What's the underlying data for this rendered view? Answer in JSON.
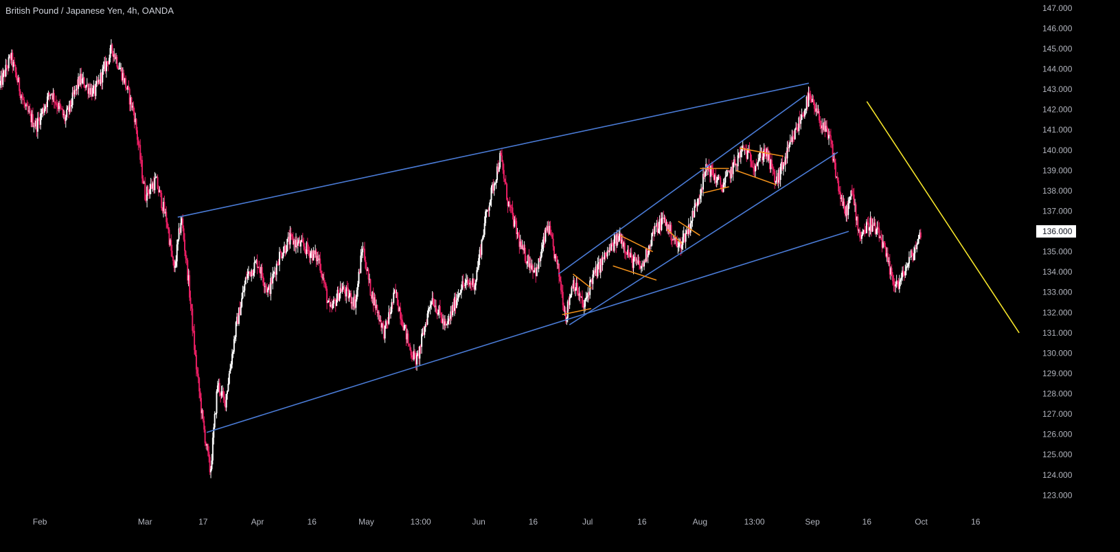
{
  "chart_data": {
    "type": "candlestick",
    "title": "British Pound / Japanese Yen, 4h, OANDA",
    "xlabel": "",
    "ylabel": "",
    "ylim": [
      122.2,
      147.4
    ],
    "xlim": [
      "2024-01-21",
      "2024-10-31"
    ],
    "y_ticks": [
      "147.000",
      "146.000",
      "145.000",
      "144.000",
      "143.000",
      "142.000",
      "141.000",
      "140.000",
      "139.000",
      "138.000",
      "137.000",
      "136.000",
      "135.000",
      "134.000",
      "133.000",
      "132.000",
      "131.000",
      "130.000",
      "129.000",
      "128.000",
      "127.000",
      "126.000",
      "125.000",
      "124.000",
      "123.000"
    ],
    "x_ticks": [
      {
        "label": "Feb",
        "date": "2024-02-01"
      },
      {
        "label": "Mar",
        "date": "2024-03-01"
      },
      {
        "label": "17",
        "date": "2024-03-17"
      },
      {
        "label": "Apr",
        "date": "2024-04-01"
      },
      {
        "label": "16",
        "date": "2024-04-16"
      },
      {
        "label": "May",
        "date": "2024-05-01"
      },
      {
        "label": "13:00",
        "date": "2024-05-16"
      },
      {
        "label": "Jun",
        "date": "2024-06-01"
      },
      {
        "label": "16",
        "date": "2024-06-16"
      },
      {
        "label": "Jul",
        "date": "2024-07-01"
      },
      {
        "label": "16",
        "date": "2024-07-16"
      },
      {
        "label": "Aug",
        "date": "2024-08-01"
      },
      {
        "label": "13:00",
        "date": "2024-08-16"
      },
      {
        "label": "Sep",
        "date": "2024-09-01"
      },
      {
        "label": "16",
        "date": "2024-09-16"
      },
      {
        "label": "Oct",
        "date": "2024-10-01"
      },
      {
        "label": "16",
        "date": "2024-10-16"
      }
    ],
    "last_price": "136.000",
    "price_path": [
      [
        "2024-01-21",
        143.2
      ],
      [
        "2024-01-24",
        144.6
      ],
      [
        "2024-01-28",
        142.0
      ],
      [
        "2024-01-31",
        141.2
      ],
      [
        "2024-02-04",
        142.9
      ],
      [
        "2024-02-08",
        141.5
      ],
      [
        "2024-02-12",
        143.5
      ],
      [
        "2024-02-16",
        142.8
      ],
      [
        "2024-02-21",
        145.0
      ],
      [
        "2024-02-24",
        143.6
      ],
      [
        "2024-02-27",
        141.8
      ],
      [
        "2024-03-01",
        137.8
      ],
      [
        "2024-03-04",
        138.5
      ],
      [
        "2024-03-07",
        136.5
      ],
      [
        "2024-03-09",
        134.0
      ],
      [
        "2024-03-11",
        136.7
      ],
      [
        "2024-03-13",
        133.5
      ],
      [
        "2024-03-15",
        129.5
      ],
      [
        "2024-03-17",
        126.5
      ],
      [
        "2024-03-19",
        124.1
      ],
      [
        "2024-03-21",
        128.5
      ],
      [
        "2024-03-23",
        127.5
      ],
      [
        "2024-03-26",
        131.2
      ],
      [
        "2024-03-29",
        133.8
      ],
      [
        "2024-04-01",
        134.5
      ],
      [
        "2024-04-04",
        133.0
      ],
      [
        "2024-04-07",
        134.8
      ],
      [
        "2024-04-10",
        135.6
      ],
      [
        "2024-04-14",
        135.2
      ],
      [
        "2024-04-18",
        134.6
      ],
      [
        "2024-04-21",
        132.0
      ],
      [
        "2024-04-24",
        133.2
      ],
      [
        "2024-04-28",
        132.5
      ],
      [
        "2024-04-30",
        135.3
      ],
      [
        "2024-05-02",
        133.2
      ],
      [
        "2024-05-06",
        131.0
      ],
      [
        "2024-05-09",
        133.0
      ],
      [
        "2024-05-13",
        130.2
      ],
      [
        "2024-05-15",
        129.6
      ],
      [
        "2024-05-19",
        132.8
      ],
      [
        "2024-05-23",
        131.2
      ],
      [
        "2024-05-27",
        133.3
      ],
      [
        "2024-05-31",
        133.5
      ],
      [
        "2024-06-03",
        136.8
      ],
      [
        "2024-06-07",
        139.7
      ],
      [
        "2024-06-09",
        137.5
      ],
      [
        "2024-06-13",
        135.0
      ],
      [
        "2024-06-17",
        134.0
      ],
      [
        "2024-06-20",
        136.3
      ],
      [
        "2024-06-23",
        134.0
      ],
      [
        "2024-06-25",
        131.8
      ],
      [
        "2024-06-27",
        133.6
      ],
      [
        "2024-06-30",
        132.2
      ],
      [
        "2024-07-02",
        133.6
      ],
      [
        "2024-07-06",
        134.8
      ],
      [
        "2024-07-10",
        135.8
      ],
      [
        "2024-07-13",
        134.6
      ],
      [
        "2024-07-16",
        134.2
      ],
      [
        "2024-07-19",
        135.9
      ],
      [
        "2024-07-22",
        136.6
      ],
      [
        "2024-07-26",
        135.2
      ],
      [
        "2024-07-29",
        136.2
      ],
      [
        "2024-08-01",
        138.0
      ],
      [
        "2024-08-03",
        139.2
      ],
      [
        "2024-08-07",
        138.2
      ],
      [
        "2024-08-10",
        139.1
      ],
      [
        "2024-08-13",
        140.1
      ],
      [
        "2024-08-16",
        139.3
      ],
      [
        "2024-08-19",
        140.0
      ],
      [
        "2024-08-22",
        138.4
      ],
      [
        "2024-08-25",
        139.8
      ],
      [
        "2024-08-28",
        141.2
      ],
      [
        "2024-08-31",
        142.6
      ],
      [
        "2024-09-03",
        141.5
      ],
      [
        "2024-09-06",
        140.4
      ],
      [
        "2024-09-08",
        138.3
      ],
      [
        "2024-09-10",
        136.8
      ],
      [
        "2024-09-12",
        137.9
      ],
      [
        "2024-09-14",
        135.8
      ],
      [
        "2024-09-17",
        136.4
      ],
      [
        "2024-09-20",
        135.6
      ],
      [
        "2024-09-23",
        133.6
      ],
      [
        "2024-09-25",
        133.4
      ],
      [
        "2024-09-27",
        134.3
      ],
      [
        "2024-09-29",
        135.0
      ],
      [
        "2024-10-01",
        136.0
      ]
    ],
    "trendlines": [
      {
        "color": "#4a7bd6",
        "from": [
          "2024-03-10",
          136.7
        ],
        "to": [
          "2024-08-31",
          143.3
        ]
      },
      {
        "color": "#4a7bd6",
        "from": [
          "2024-03-18",
          126.1
        ],
        "to": [
          "2024-09-11",
          136.0
        ]
      },
      {
        "color": "#4a7bd6",
        "from": [
          "2024-06-23",
          133.9
        ],
        "to": [
          "2024-08-30",
          142.7
        ]
      },
      {
        "color": "#4a7bd6",
        "from": [
          "2024-06-26",
          131.4
        ],
        "to": [
          "2024-09-08",
          139.9
        ]
      },
      {
        "color": "#f7e62a",
        "from": [
          "2024-09-16",
          142.4
        ],
        "to": [
          "2024-10-28",
          131.0
        ]
      }
    ],
    "patterns": [
      {
        "color": "#f0901a",
        "from": [
          "2024-06-27",
          133.9
        ],
        "to": [
          "2024-07-02",
          133.2
        ]
      },
      {
        "color": "#f0901a",
        "from": [
          "2024-06-24",
          131.9
        ],
        "to": [
          "2024-07-02",
          132.2
        ]
      },
      {
        "color": "#f0901a",
        "from": [
          "2024-07-10",
          135.8
        ],
        "to": [
          "2024-07-19",
          135.0
        ]
      },
      {
        "color": "#f0901a",
        "from": [
          "2024-07-08",
          134.3
        ],
        "to": [
          "2024-07-20",
          133.6
        ]
      },
      {
        "color": "#f0901a",
        "from": [
          "2024-07-26",
          136.5
        ],
        "to": [
          "2024-08-01",
          135.8
        ]
      },
      {
        "color": "#f0901a",
        "from": [
          "2024-07-23",
          136.1
        ],
        "to": [
          "2024-07-27",
          135.4
        ]
      },
      {
        "color": "#f0901a",
        "from": [
          "2024-08-01",
          139.1
        ],
        "to": [
          "2024-08-09",
          139.1
        ]
      },
      {
        "color": "#f0901a",
        "from": [
          "2024-08-02",
          137.9
        ],
        "to": [
          "2024-08-09",
          138.2
        ]
      },
      {
        "color": "#f0901a",
        "from": [
          "2024-08-12",
          140.1
        ],
        "to": [
          "2024-08-24",
          139.7
        ]
      },
      {
        "color": "#f0901a",
        "from": [
          "2024-08-11",
          139.0
        ],
        "to": [
          "2024-08-22",
          138.3
        ]
      }
    ],
    "up_color": "#ffffff",
    "down_color": "#e91e63",
    "background": "#000000",
    "grid": false,
    "legend": "none"
  }
}
